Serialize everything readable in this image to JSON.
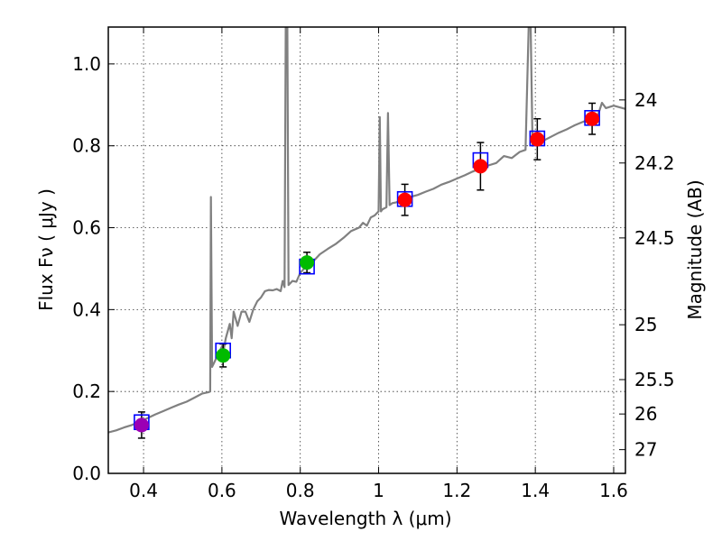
{
  "chart_data": {
    "type": "scatter",
    "xlabel": "Wavelength  λ (μm)",
    "ylabel": "Flux  Fν  ( μJy )",
    "y2label": "Magnitude (AB)",
    "xlim": [
      0.31,
      1.63
    ],
    "ylim": [
      0.0,
      1.09
    ],
    "grid": true,
    "x_ticks": [
      0.4,
      0.6,
      0.8,
      1.0,
      1.2,
      1.4,
      1.6
    ],
    "x_tick_labels": [
      "0.4",
      "0.6",
      "0.8",
      "1",
      "1.2",
      "1.4",
      "1.6"
    ],
    "y_ticks": [
      0.0,
      0.2,
      0.4,
      0.6,
      0.8,
      1.0
    ],
    "y_tick_labels": [
      "0.0",
      "0.2",
      "0.4",
      "0.6",
      "0.8",
      "1.0"
    ],
    "mag_ticks": [
      {
        "label": "24",
        "flux": 0.912
      },
      {
        "label": "24.2",
        "flux": 0.758
      },
      {
        "label": "24.5",
        "flux": 0.575
      },
      {
        "label": "25",
        "flux": 0.363
      },
      {
        "label": "25.5",
        "flux": 0.229
      },
      {
        "label": "26",
        "flux": 0.145
      },
      {
        "label": "27",
        "flux": 0.058
      }
    ],
    "model_spectrum": {
      "color": "#808080",
      "points": [
        [
          0.31,
          0.1
        ],
        [
          0.33,
          0.105
        ],
        [
          0.35,
          0.112
        ],
        [
          0.37,
          0.118
        ],
        [
          0.39,
          0.126
        ],
        [
          0.41,
          0.135
        ],
        [
          0.43,
          0.144
        ],
        [
          0.45,
          0.152
        ],
        [
          0.47,
          0.16
        ],
        [
          0.49,
          0.168
        ],
        [
          0.51,
          0.175
        ],
        [
          0.53,
          0.185
        ],
        [
          0.55,
          0.195
        ],
        [
          0.565,
          0.198
        ],
        [
          0.57,
          0.2
        ],
        [
          0.572,
          0.675
        ],
        [
          0.575,
          0.26
        ],
        [
          0.58,
          0.27
        ],
        [
          0.59,
          0.29
        ],
        [
          0.6,
          0.31
        ],
        [
          0.605,
          0.305
        ],
        [
          0.61,
          0.33
        ],
        [
          0.62,
          0.365
        ],
        [
          0.625,
          0.33
        ],
        [
          0.63,
          0.395
        ],
        [
          0.64,
          0.36
        ],
        [
          0.65,
          0.395
        ],
        [
          0.66,
          0.395
        ],
        [
          0.67,
          0.37
        ],
        [
          0.68,
          0.4
        ],
        [
          0.69,
          0.42
        ],
        [
          0.7,
          0.43
        ],
        [
          0.71,
          0.445
        ],
        [
          0.72,
          0.448
        ],
        [
          0.73,
          0.447
        ],
        [
          0.74,
          0.45
        ],
        [
          0.75,
          0.445
        ],
        [
          0.755,
          0.47
        ],
        [
          0.76,
          0.455
        ],
        [
          0.763,
          1.09
        ],
        [
          0.767,
          1.09
        ],
        [
          0.77,
          0.46
        ],
        [
          0.78,
          0.47
        ],
        [
          0.79,
          0.468
        ],
        [
          0.8,
          0.49
        ],
        [
          0.81,
          0.5
        ],
        [
          0.82,
          0.51
        ],
        [
          0.83,
          0.515
        ],
        [
          0.84,
          0.525
        ],
        [
          0.85,
          0.535
        ],
        [
          0.87,
          0.548
        ],
        [
          0.89,
          0.56
        ],
        [
          0.91,
          0.575
        ],
        [
          0.93,
          0.592
        ],
        [
          0.95,
          0.6
        ],
        [
          0.96,
          0.612
        ],
        [
          0.97,
          0.605
        ],
        [
          0.98,
          0.625
        ],
        [
          0.99,
          0.63
        ],
        [
          1.0,
          0.64
        ],
        [
          1.003,
          0.87
        ],
        [
          1.006,
          0.64
        ],
        [
          1.01,
          0.645
        ],
        [
          1.02,
          0.65
        ],
        [
          1.024,
          0.88
        ],
        [
          1.028,
          0.655
        ],
        [
          1.035,
          0.66
        ],
        [
          1.045,
          0.662
        ],
        [
          1.06,
          0.668
        ],
        [
          1.08,
          0.675
        ],
        [
          1.1,
          0.68
        ],
        [
          1.12,
          0.688
        ],
        [
          1.14,
          0.695
        ],
        [
          1.16,
          0.705
        ],
        [
          1.18,
          0.712
        ],
        [
          1.2,
          0.72
        ],
        [
          1.22,
          0.728
        ],
        [
          1.24,
          0.737
        ],
        [
          1.26,
          0.745
        ],
        [
          1.28,
          0.752
        ],
        [
          1.3,
          0.758
        ],
        [
          1.32,
          0.775
        ],
        [
          1.34,
          0.77
        ],
        [
          1.36,
          0.785
        ],
        [
          1.375,
          0.79
        ],
        [
          1.383,
          1.09
        ],
        [
          1.388,
          1.09
        ],
        [
          1.393,
          0.8
        ],
        [
          1.4,
          0.805
        ],
        [
          1.42,
          0.812
        ],
        [
          1.44,
          0.822
        ],
        [
          1.46,
          0.832
        ],
        [
          1.48,
          0.84
        ],
        [
          1.5,
          0.85
        ],
        [
          1.52,
          0.858
        ],
        [
          1.54,
          0.865
        ],
        [
          1.56,
          0.875
        ],
        [
          1.57,
          0.905
        ],
        [
          1.58,
          0.892
        ],
        [
          1.6,
          0.898
        ],
        [
          1.63,
          0.89
        ]
      ]
    },
    "observed": [
      {
        "x": 0.395,
        "y": 0.118,
        "err": 0.032,
        "color": "#9b00b4"
      },
      {
        "x": 0.603,
        "y": 0.288,
        "err": 0.028,
        "color": "#00bb00"
      },
      {
        "x": 0.817,
        "y": 0.515,
        "err": 0.025,
        "color": "#00bb00"
      },
      {
        "x": 1.067,
        "y": 0.668,
        "err": 0.038,
        "color": "#ff0000"
      },
      {
        "x": 1.26,
        "y": 0.75,
        "err": 0.058,
        "color": "#ff0000"
      },
      {
        "x": 1.405,
        "y": 0.816,
        "err": 0.05,
        "color": "#ff0000"
      },
      {
        "x": 1.545,
        "y": 0.866,
        "err": 0.038,
        "color": "#ff0000"
      }
    ],
    "model_photometry": {
      "color": "#0000ff",
      "points": [
        {
          "x": 0.395,
          "y": 0.125
        },
        {
          "x": 0.603,
          "y": 0.3
        },
        {
          "x": 0.817,
          "y": 0.505
        },
        {
          "x": 1.067,
          "y": 0.67
        },
        {
          "x": 1.26,
          "y": 0.765
        },
        {
          "x": 1.405,
          "y": 0.818
        },
        {
          "x": 1.545,
          "y": 0.868
        }
      ]
    }
  }
}
